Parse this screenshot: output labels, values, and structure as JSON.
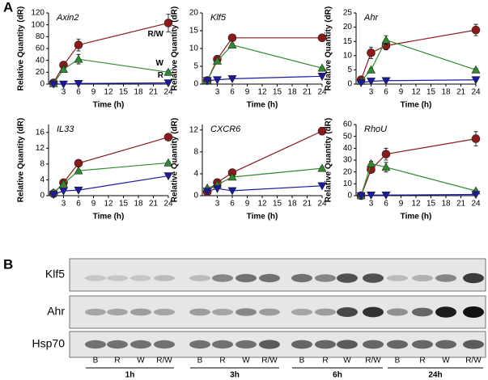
{
  "panel_labels": [
    "A",
    "B"
  ],
  "chart_data": [
    {
      "type": "line",
      "title": "Axin2",
      "xlabel": "Time (h)",
      "ylabel": "Relative Quantity (dR)",
      "x": [
        1,
        3,
        6,
        24
      ],
      "xlim": [
        0,
        24
      ],
      "xticks": [
        3,
        6,
        9,
        12,
        15,
        18,
        21,
        24
      ],
      "ylim": [
        0,
        120
      ],
      "yticks": [
        0,
        20,
        40,
        60,
        80,
        100,
        120
      ],
      "series": [
        {
          "name": "R/W",
          "color": "#8b1a1a",
          "marker": "circle",
          "values": [
            2,
            32,
            66,
            103
          ],
          "errors": [
            1,
            5,
            10,
            15
          ]
        },
        {
          "name": "W",
          "color": "#2e8b2e",
          "marker": "triangle",
          "values": [
            1,
            25,
            42,
            20
          ],
          "errors": [
            1,
            4,
            8,
            3
          ]
        },
        {
          "name": "R",
          "color": "#1a1aa0",
          "marker": "triangle-down",
          "values": [
            0,
            0,
            1,
            2
          ]
        }
      ]
    },
    {
      "type": "line",
      "title": "Klf5",
      "xlabel": "Time (h)",
      "ylabel": "Relative Quantity (dR)",
      "x": [
        1,
        3,
        6,
        24
      ],
      "xlim": [
        0,
        24
      ],
      "xticks": [
        3,
        6,
        9,
        12,
        15,
        18,
        21,
        24
      ],
      "ylim": [
        0,
        20
      ],
      "yticks": [
        0,
        5,
        10,
        15,
        20
      ],
      "series": [
        {
          "color": "#8b1a1a",
          "marker": "circle",
          "values": [
            1,
            7,
            13,
            13
          ],
          "errors": [
            0.3,
            0.6,
            0.6,
            0.4
          ]
        },
        {
          "color": "#2e8b2e",
          "marker": "triangle",
          "values": [
            1,
            6.5,
            11,
            4.5
          ],
          "errors": [
            0.2,
            0.5,
            0.5,
            0.3
          ]
        },
        {
          "color": "#1a1aa0",
          "marker": "triangle-down",
          "values": [
            1,
            1.2,
            1.5,
            2.2
          ]
        }
      ]
    },
    {
      "type": "line",
      "title": "Ahr",
      "xlabel": "Time (h)",
      "ylabel": "Relative Quantity (dR)",
      "x": [
        1,
        3,
        6,
        24
      ],
      "xlim": [
        0,
        24
      ],
      "xticks": [
        3,
        6,
        9,
        12,
        15,
        18,
        21,
        24
      ],
      "ylim": [
        0,
        25
      ],
      "yticks": [
        0,
        5,
        10,
        15,
        20,
        25
      ],
      "series": [
        {
          "color": "#8b1a1a",
          "marker": "circle",
          "values": [
            1.5,
            11,
            13.5,
            19
          ],
          "errors": [
            0.5,
            2,
            1.5,
            2
          ]
        },
        {
          "color": "#2e8b2e",
          "marker": "triangle",
          "values": [
            1,
            5,
            15.5,
            5
          ],
          "errors": [
            0.3,
            0.5,
            1.5,
            0.5
          ]
        },
        {
          "color": "#1a1aa0",
          "marker": "triangle-down",
          "values": [
            0.5,
            1,
            1.2,
            1.5
          ]
        }
      ]
    },
    {
      "type": "line",
      "title": "IL33",
      "xlabel": "Time (h)",
      "ylabel": "Relative Quantity (dR)",
      "x": [
        1,
        3,
        6,
        24
      ],
      "xlim": [
        0,
        24
      ],
      "xticks": [
        3,
        6,
        9,
        12,
        15,
        18,
        21,
        24
      ],
      "ylim": [
        0,
        18
      ],
      "yticks": [
        0,
        4,
        8,
        12,
        16
      ],
      "series": [
        {
          "color": "#8b1a1a",
          "marker": "circle",
          "values": [
            0.5,
            3.3,
            8.2,
            14.8
          ],
          "errors": [
            0.2,
            0.3,
            0.4,
            0.8
          ]
        },
        {
          "color": "#2e8b2e",
          "marker": "triangle",
          "values": [
            0.8,
            3,
            6.3,
            8.3
          ],
          "errors": [
            0.2,
            0.3,
            0.3,
            0.3
          ]
        },
        {
          "color": "#1a1aa0",
          "marker": "triangle-down",
          "values": [
            0.3,
            1.2,
            1.4,
            5
          ]
        }
      ]
    },
    {
      "type": "line",
      "title": "CXCR6",
      "xlabel": "Time (h)",
      "ylabel": "Relative Quantity (dR)",
      "x": [
        1,
        3,
        6,
        24
      ],
      "xlim": [
        0,
        24
      ],
      "xticks": [
        3,
        6,
        9,
        12,
        15,
        18,
        21,
        24
      ],
      "ylim": [
        0,
        13
      ],
      "yticks": [
        0,
        4,
        8,
        12
      ],
      "series": [
        {
          "color": "#8b1a1a",
          "marker": "circle",
          "values": [
            0.7,
            2.4,
            4.2,
            11.8
          ],
          "errors": [
            0.2,
            0.3,
            0.4,
            0.7
          ]
        },
        {
          "color": "#2e8b2e",
          "marker": "triangle",
          "values": [
            1.4,
            2,
            3.4,
            5
          ],
          "errors": [
            0.2,
            0.2,
            0.3,
            0.3
          ]
        },
        {
          "color": "#1a1aa0",
          "marker": "triangle-down",
          "values": [
            0.8,
            1.3,
            0.9,
            1.8
          ]
        }
      ]
    },
    {
      "type": "line",
      "title": "RhoU",
      "xlabel": "Time (h)",
      "ylabel": "Relative Quantity (dR)",
      "x": [
        1,
        3,
        6,
        24
      ],
      "xlim": [
        0,
        24
      ],
      "xticks": [
        3,
        6,
        9,
        12,
        15,
        18,
        21,
        24
      ],
      "ylim": [
        0,
        60
      ],
      "yticks": [
        0,
        10,
        20,
        30,
        40,
        50,
        60
      ],
      "series": [
        {
          "color": "#8b1a1a",
          "marker": "circle",
          "values": [
            0,
            22,
            35,
            48
          ],
          "errors": [
            0.5,
            3,
            5,
            6
          ]
        },
        {
          "color": "#2e8b2e",
          "marker": "triangle",
          "values": [
            0,
            27,
            24,
            4
          ],
          "errors": [
            0.5,
            2,
            4,
            1
          ]
        },
        {
          "color": "#1a1aa0",
          "marker": "triangle-down",
          "values": [
            0,
            0.5,
            0.5,
            1
          ]
        }
      ]
    }
  ],
  "blot": {
    "rows": [
      "Klf5",
      "Ahr",
      "Hsp70"
    ],
    "lanes": [
      "B",
      "R",
      "W",
      "R/W"
    ],
    "timepoints": [
      "1h",
      "3h",
      "6h",
      "24h"
    ]
  }
}
